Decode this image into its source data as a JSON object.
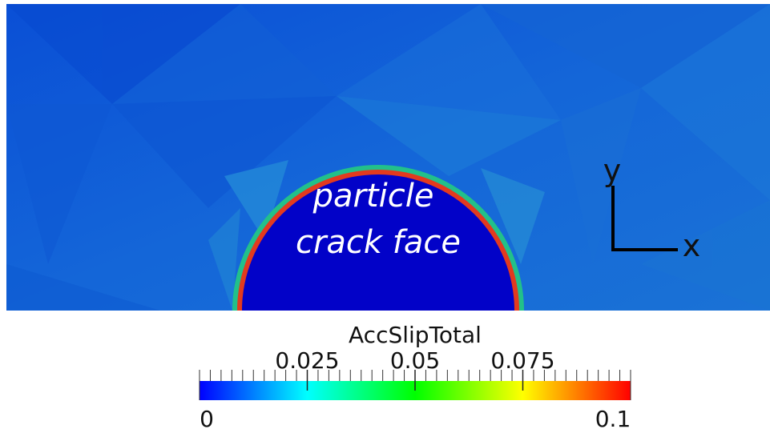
{
  "image": {
    "annotation": [
      "particle",
      "crack face"
    ],
    "axes": {
      "y": "y",
      "x": "x"
    }
  },
  "colorbar": {
    "title": "AccSlipTotal",
    "range": [
      0,
      0.1
    ],
    "ticks": [
      0.025,
      0.05,
      0.075
    ],
    "colors": [
      "#0000ff",
      "#00ffff",
      "#00ff00",
      "#ffff00",
      "#ff0000"
    ]
  }
}
